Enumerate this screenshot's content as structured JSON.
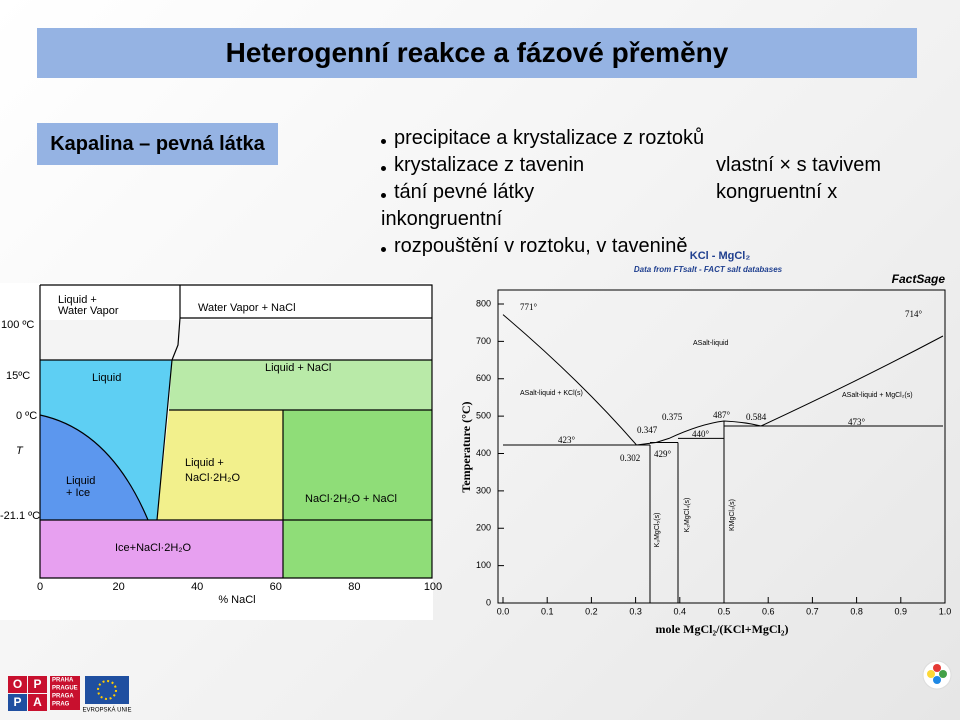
{
  "header": {
    "title": "Heterogenní reakce a fázové přeměny"
  },
  "section_label": "Kapalina – pevná látka",
  "bullets": [
    "precipitace a krystalizace z roztoků",
    "krystalizace z tavenin",
    "tání pevné látky",
    "rozpouštění v roztoku, v tavenině"
  ],
  "asides": [
    "vlastní × s tavivem",
    "kongruentní x"
  ],
  "continuation": "inkongruentní",
  "left_diagram": {
    "region_labels": [
      "Liquid +",
      "Water Vapor",
      "Water Vapor + NaCl",
      "Liquid",
      "Liquid + NaCl",
      "Liquid",
      "+ Ice",
      "Liquid +",
      "NaCl·2H₂O",
      "NaCl·2H₂O + NaCl",
      "Ice+NaCl·2H₂O"
    ],
    "temperature_labels": [
      "100 ºC",
      "15ºC",
      "0 ºC",
      "T",
      "-21.1 ºC"
    ],
    "xticks": [
      "0",
      "20",
      "40",
      "60",
      "80",
      "100"
    ],
    "xlabel": "% NaCl"
  },
  "right_diagram": {
    "title": "KCl - MgCl₂",
    "subtitle": "Data from FTsalt - FACT salt databases",
    "brand": "FactSage",
    "ylabel": "Temperature (°C)",
    "xlabel": "mole MgCl₂/(KCl+MgCl₂)",
    "yticks": [
      0,
      100,
      200,
      300,
      400,
      500,
      600,
      700,
      800
    ],
    "xticks": [
      "0.0",
      "0.1",
      "0.2",
      "0.3",
      "0.4",
      "0.5",
      "0.6",
      "0.7",
      "0.8",
      "0.9",
      "1.0"
    ],
    "annotations": [
      "771°",
      "714°",
      "ASalt-liquid",
      "ASalt-liquid + KCl(s)",
      "ASalt-liquid + MgCl₂(s)",
      "0.375",
      "487°",
      "0.584",
      "0.347",
      "440°",
      "473°",
      "423°",
      "0.302",
      "429°"
    ],
    "phase_labels": [
      "K₃MgCl₅(s)",
      "K₂MgCl₄(s)",
      "KMgCl₃(s)"
    ]
  },
  "footer": {
    "logo": [
      "O",
      "P",
      "P",
      "A"
    ],
    "city": [
      "PRAHA",
      "PRAGUE",
      "PRAGA",
      "PRAG"
    ],
    "eu": "EVROPSKÁ UNIE"
  }
}
